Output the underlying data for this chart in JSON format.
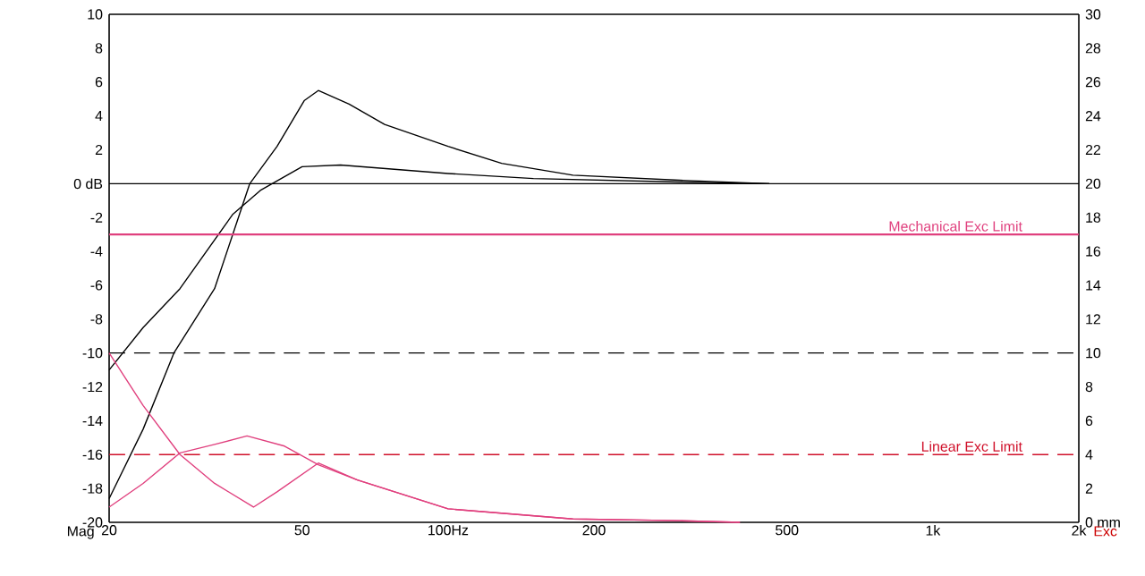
{
  "chart_data": {
    "type": "line",
    "ylabel": "Mag",
    "y2label": "Exc",
    "log": "x",
    "grid": false,
    "marker": "none",
    "xlim": [
      20,
      2000
    ],
    "xticks": [
      20,
      50,
      {
        "value": 100,
        "label": "100Hz"
      },
      200,
      500,
      {
        "value": 1000,
        "label": "1k"
      },
      {
        "value": 2000,
        "label": "2k"
      }
    ],
    "ylim": [
      -20,
      10
    ],
    "yticks": [
      -20,
      -18,
      -16,
      -14,
      -12,
      -10,
      -8,
      -6,
      -4,
      -2,
      {
        "value": 0,
        "label": "0 dB"
      },
      2,
      4,
      6,
      8,
      10
    ],
    "y2lim": [
      0,
      30
    ],
    "y2ticks": [
      {
        "value": 0,
        "label": "0 mm"
      },
      2,
      4,
      6,
      8,
      10,
      12,
      14,
      16,
      18,
      20,
      22,
      24,
      26,
      28,
      30
    ],
    "series": [
      {
        "color": "#000000",
        "x": [
          20,
          23.5,
          27.2,
          33,
          39,
          44.4,
          50.5,
          54,
          62.5,
          74,
          100,
          129,
          181,
          300,
          460
        ],
        "values": [
          -18.6,
          -14.5,
          -10,
          -6.2,
          0,
          2.2,
          4.9,
          5.5,
          4.7,
          3.5,
          2.2,
          1.2,
          0.5,
          0.2,
          0
        ]
      },
      {
        "color": "#000000",
        "x": [
          20,
          23.5,
          28,
          36,
          41,
          50,
          60,
          100,
          150,
          300,
          460
        ],
        "values": [
          -11,
          -8.5,
          -6.2,
          -1.8,
          -0.4,
          1.0,
          1.1,
          0.6,
          0.3,
          0.1,
          0
        ]
      },
      {
        "color": "#e0407e",
        "axis": "y2",
        "x": [
          20,
          23.5,
          28,
          33,
          39.7,
          44.4,
          54,
          65,
          100,
          181,
          300,
          400
        ],
        "values": [
          10,
          6.9,
          4.0,
          2.3,
          0.9,
          1.8,
          3.5,
          2.5,
          0.8,
          0.2,
          0.1,
          0
        ]
      },
      {
        "color": "#e0407e",
        "axis": "y2",
        "x": [
          20,
          23.5,
          28,
          33,
          38.5,
          46,
          54,
          65,
          100,
          181,
          300,
          400
        ],
        "values": [
          0.9,
          2.3,
          4.1,
          4.6,
          5.1,
          4.5,
          3.4,
          2.5,
          0.8,
          0.2,
          0.1,
          0
        ]
      }
    ],
    "ref_lines": [
      {
        "axis": "y",
        "value": 0,
        "color": "#000000",
        "line_style": "solid"
      },
      {
        "axis": "y",
        "value": -10,
        "color": "#000000",
        "line_style": "dashed"
      },
      {
        "axis": "y2",
        "value": 17,
        "label": "Mechanical Exc Limit",
        "color": "#e0407e",
        "line_style": "solid"
      },
      {
        "axis": "y2",
        "value": 4,
        "label": "Linear Exc Limit",
        "color": "#d0102a",
        "line_style": "dashed"
      }
    ]
  }
}
